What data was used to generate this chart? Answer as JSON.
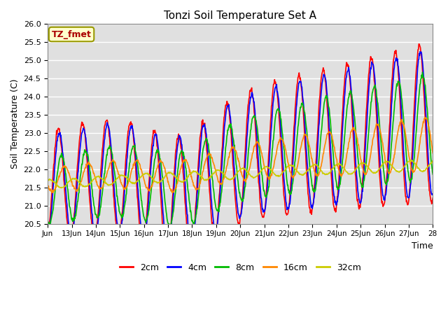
{
  "title": "Tonzi Soil Temperature Set A",
  "xlabel": "Time",
  "ylabel": "Soil Temperature (C)",
  "ylim": [
    20.5,
    26.0
  ],
  "xlim_days": [
    0,
    16
  ],
  "x_tick_labels": [
    "Jun",
    "13Jun",
    "14Jun",
    "15Jun",
    "16Jun",
    "17Jun",
    "18Jun",
    "19Jun",
    "20Jun",
    "21Jun",
    "22Jun",
    "23Jun",
    "24Jun",
    "25Jun",
    "26Jun",
    "27Jun",
    "28"
  ],
  "legend_labels": [
    "2cm",
    "4cm",
    "8cm",
    "16cm",
    "32cm"
  ],
  "line_colors": [
    "#ff0000",
    "#0000ff",
    "#00bb00",
    "#ff8800",
    "#cccc00"
  ],
  "annotation_text": "TZ_fmet",
  "annotation_facecolor": "#ffffcc",
  "annotation_edgecolor": "#999900",
  "annotation_textcolor": "#aa0000",
  "bg_color": "#e0e0e0",
  "line_width": 1.2
}
